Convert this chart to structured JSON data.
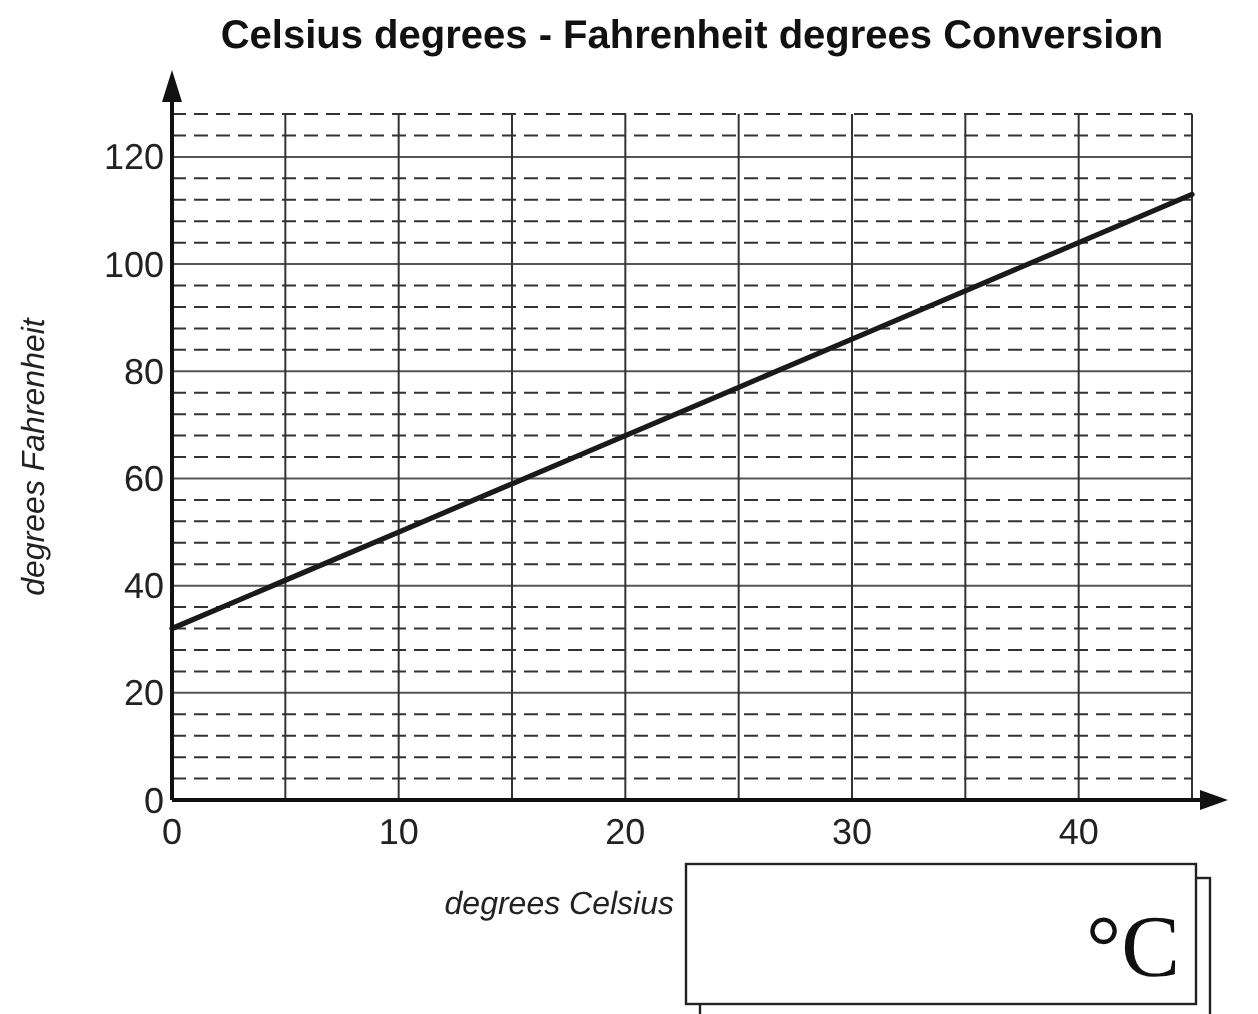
{
  "chart_data": {
    "type": "line",
    "title": "Celsius degrees - Fahrenheit degrees Conversion",
    "xlabel": "degrees Celsius",
    "ylabel": "degrees Fahrenheit",
    "x": [
      0,
      5,
      10,
      15,
      20,
      25,
      30,
      35,
      40,
      45
    ],
    "series": [
      {
        "color": "#1a1a1a",
        "values": [
          32,
          41,
          50,
          59,
          68,
          77,
          86,
          95,
          104,
          113
        ]
      }
    ],
    "xlim": [
      0,
      45
    ],
    "ylim": [
      0,
      128
    ],
    "xticks": [
      0,
      {
        "value": 5,
        "label": null
      },
      10,
      {
        "value": 15,
        "label": null
      },
      20,
      {
        "value": 25,
        "label": null
      },
      30,
      {
        "value": 35,
        "label": null
      },
      40,
      {
        "value": 45,
        "label": null
      }
    ],
    "yticks": [
      0,
      {
        "value": 4,
        "label": null
      },
      {
        "value": 8,
        "label": null
      },
      {
        "value": 12,
        "label": null
      },
      {
        "value": 16,
        "label": null
      },
      20,
      {
        "value": 24,
        "label": null
      },
      {
        "value": 28,
        "label": null
      },
      {
        "value": 32,
        "label": null
      },
      {
        "value": 36,
        "label": null
      },
      40,
      {
        "value": 44,
        "label": null
      },
      {
        "value": 48,
        "label": null
      },
      {
        "value": 52,
        "label": null
      },
      {
        "value": 56,
        "label": null
      },
      60,
      {
        "value": 64,
        "label": null
      },
      {
        "value": 68,
        "label": null
      },
      {
        "value": 72,
        "label": null
      },
      {
        "value": 76,
        "label": null
      },
      80,
      {
        "value": 84,
        "label": null
      },
      {
        "value": 88,
        "label": null
      },
      {
        "value": 92,
        "label": null
      },
      {
        "value": 96,
        "label": null
      },
      100,
      {
        "value": 104,
        "label": null
      },
      {
        "value": 108,
        "label": null
      },
      {
        "value": 112,
        "label": null
      },
      {
        "value": 116,
        "label": null
      },
      120,
      {
        "value": 124,
        "label": null
      },
      {
        "value": 128,
        "label": null
      }
    ],
    "grid": true,
    "line_style": "solid",
    "marker": "none",
    "annotations": [
      "°C"
    ]
  }
}
